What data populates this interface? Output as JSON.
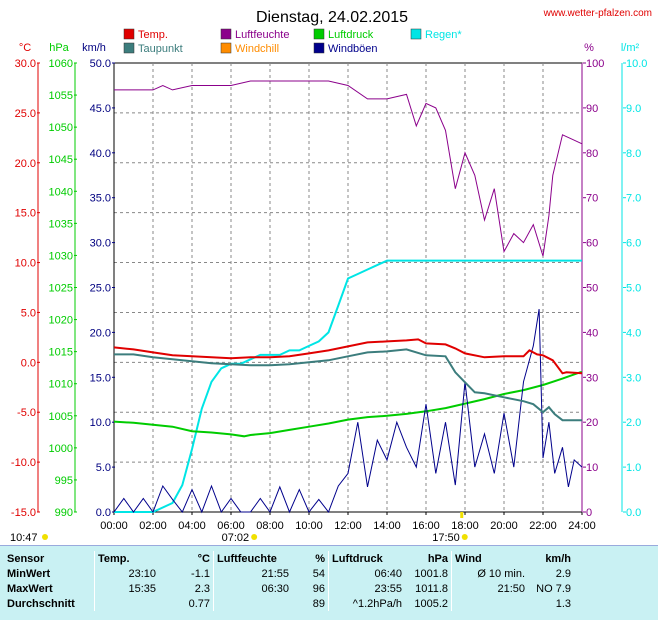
{
  "title": "Dienstag, 24.02.2015",
  "source": "www.wetter-pfalzen.com",
  "legend": [
    {
      "label": "Temp.",
      "color": "#e00000"
    },
    {
      "label": "Taupunkt",
      "color": "#3c7d7d"
    },
    {
      "label": "Luftfeuchte",
      "color": "#8b008b"
    },
    {
      "label": "Windchill",
      "color": "#ff8c00"
    },
    {
      "label": "Luftdruck",
      "color": "#00cc00"
    },
    {
      "label": "Windböen",
      "color": "#00008b"
    },
    {
      "label": "Regen*",
      "color": "#00e5e5"
    }
  ],
  "axis_units": {
    "temp": "°C",
    "pressure": "hPa",
    "wind": "km/h",
    "humidity": "%",
    "rain": "l/m²"
  },
  "markers": {
    "sunrise": "07:02",
    "sunset": "17:50",
    "left_time": "10:47"
  },
  "chart_data": {
    "type": "line",
    "title": "Dienstag, 24.02.2015",
    "x_ticks": [
      "00:00",
      "02:00",
      "04:00",
      "06:00",
      "08:00",
      "10:00",
      "12:00",
      "14:00",
      "16:00",
      "18:00",
      "20:00",
      "22:00",
      "24:00"
    ],
    "xlim": [
      0,
      24
    ],
    "axes": {
      "temp": {
        "unit": "°C",
        "ylim": [
          -15,
          30
        ],
        "ticks": [
          "30.0",
          "25.0",
          "20.0",
          "15.0",
          "10.0",
          "5.0",
          "0.0",
          "-5.0",
          "-10.0",
          "-15.0"
        ]
      },
      "pressure": {
        "unit": "hPa",
        "ylim": [
          990,
          1060
        ],
        "ticks": [
          "1060",
          "1055",
          "1050",
          "1045",
          "1040",
          "1035",
          "1030",
          "1025",
          "1020",
          "1015",
          "1010",
          "1005",
          "1000",
          "995",
          "990"
        ]
      },
      "wind": {
        "unit": "km/h",
        "ylim": [
          0,
          50
        ],
        "ticks": [
          "50.0",
          "45.0",
          "40.0",
          "35.0",
          "30.0",
          "25.0",
          "20.0",
          "15.0",
          "10.0",
          "5.0",
          "0.0"
        ]
      },
      "humidity": {
        "unit": "%",
        "ylim": [
          0,
          100
        ],
        "ticks": [
          "100",
          "90",
          "80",
          "70",
          "60",
          "50",
          "40",
          "30",
          "20",
          "10",
          "0"
        ]
      },
      "rain": {
        "unit": "l/m²",
        "ylim": [
          0,
          10
        ],
        "ticks": [
          "10.0",
          "9.0",
          "8.0",
          "7.0",
          "6.0",
          "5.0",
          "4.0",
          "3.0",
          "2.0",
          "1.0",
          "0.0"
        ]
      }
    },
    "series": [
      {
        "name": "Temp.",
        "axis": "temp",
        "color": "#e00000",
        "x": [
          0,
          1,
          2,
          3,
          4,
          5,
          6,
          7,
          8,
          9,
          10,
          11,
          12,
          13,
          14,
          15,
          15.6,
          16,
          17,
          17.5,
          18,
          19,
          20,
          21,
          21.3,
          21.7,
          22,
          22.5,
          23,
          23.2,
          24
        ],
        "y": [
          1.5,
          1.3,
          1.0,
          0.7,
          0.6,
          0.5,
          0.4,
          0.5,
          0.5,
          0.6,
          0.9,
          1.2,
          1.6,
          2.0,
          2.1,
          2.2,
          2.3,
          1.9,
          1.8,
          1.4,
          0.9,
          0.5,
          0.6,
          0.6,
          1.2,
          0.8,
          0.7,
          0.2,
          -1.1,
          -1.0,
          -1.1
        ]
      },
      {
        "name": "Taupunkt",
        "axis": "temp",
        "color": "#3c7d7d",
        "x": [
          0,
          1,
          2,
          3,
          4,
          5,
          6,
          7,
          8,
          9,
          10,
          11,
          12,
          13,
          14,
          15,
          16,
          17,
          17.5,
          18,
          18.5,
          19,
          20,
          21,
          21.5,
          22,
          22.3,
          22.6,
          23,
          24
        ],
        "y": [
          0.8,
          0.8,
          0.5,
          0.3,
          0.1,
          -0.1,
          -0.2,
          -0.3,
          -0.3,
          -0.2,
          0.0,
          0.2,
          0.6,
          1.0,
          1.1,
          1.3,
          0.7,
          0.6,
          -1.0,
          -2.0,
          -3.0,
          -3.1,
          -3.5,
          -3.9,
          -4.2,
          -5.0,
          -4.5,
          -5.2,
          -5.8,
          -5.8
        ]
      },
      {
        "name": "Luftfeuchte",
        "axis": "humidity",
        "color": "#8b008b",
        "x": [
          0,
          1,
          2,
          2.5,
          3,
          4,
          5,
          6,
          7,
          8,
          9,
          10,
          11,
          12,
          13,
          14,
          15,
          15.5,
          16,
          16.5,
          17,
          17.5,
          18,
          18.5,
          19,
          19.5,
          20,
          20.5,
          21,
          21.5,
          22,
          22.3,
          22.5,
          23,
          23.5,
          24
        ],
        "y": [
          94,
          94,
          94,
          95,
          94,
          95,
          95,
          95,
          96,
          96,
          96,
          96,
          96,
          95,
          92,
          92,
          93,
          86,
          91,
          90,
          85,
          72,
          80,
          75,
          65,
          72,
          58,
          62,
          60,
          64,
          57,
          66,
          75,
          84,
          83,
          82
        ]
      },
      {
        "name": "Luftdruck",
        "axis": "pressure",
        "color": "#00cc00",
        "x": [
          0,
          1,
          2,
          3,
          4,
          5,
          6,
          6.67,
          7,
          8,
          9,
          10,
          11,
          12,
          13,
          14,
          15,
          16,
          17,
          18,
          19,
          20,
          21,
          22,
          23,
          23.92,
          24
        ],
        "y": [
          1004.1,
          1003.9,
          1003.6,
          1003.3,
          1002.6,
          1002.4,
          1002.1,
          1001.8,
          1002.0,
          1002.3,
          1002.8,
          1003.3,
          1003.8,
          1004.4,
          1004.8,
          1005.0,
          1005.3,
          1005.7,
          1006.2,
          1006.9,
          1007.6,
          1008.4,
          1009.0,
          1009.8,
          1010.8,
          1011.8,
          1011.8
        ]
      },
      {
        "name": "Windböen",
        "axis": "wind",
        "color": "#00008b",
        "x": [
          0,
          0.5,
          1,
          1.5,
          2,
          2.5,
          3,
          3.5,
          4,
          4.5,
          5,
          5.5,
          6,
          6.5,
          7,
          7.5,
          8,
          8.5,
          9,
          9.5,
          10,
          10.5,
          11,
          11.5,
          12,
          12.5,
          13,
          13.5,
          14,
          14.5,
          15,
          15.5,
          16,
          16.5,
          17,
          17.5,
          18,
          18.5,
          19,
          19.5,
          20,
          20.5,
          21,
          21.5,
          21.8,
          22,
          22.3,
          22.6,
          23,
          23.3,
          23.6,
          24
        ],
        "y": [
          0,
          1.5,
          0,
          1.5,
          0,
          2.9,
          1.4,
          0,
          2.5,
          0,
          2.9,
          0,
          1.5,
          0,
          0,
          1.5,
          0,
          2.8,
          0,
          2.5,
          0,
          1.4,
          0,
          2.9,
          4.3,
          10,
          2.8,
          8,
          5.8,
          10,
          7.2,
          5,
          12,
          4.3,
          10,
          3,
          14.5,
          5,
          8.7,
          4.3,
          11,
          5,
          14.5,
          18.5,
          22.6,
          6,
          10,
          4.3,
          7.2,
          2.8,
          5.8,
          5
        ]
      },
      {
        "name": "Regen*",
        "axis": "rain",
        "color": "#00e5e5",
        "x": [
          0,
          2,
          3,
          3.5,
          4,
          4.5,
          5,
          5.5,
          6,
          6.5,
          7,
          7.5,
          8,
          8.5,
          9,
          9.5,
          10,
          10.5,
          11,
          11.5,
          12,
          12.5,
          13,
          14,
          16,
          18,
          20,
          22,
          24
        ],
        "y": [
          0,
          0,
          0.2,
          0.6,
          1.4,
          2.3,
          2.9,
          3.2,
          3.3,
          3.3,
          3.4,
          3.5,
          3.5,
          3.5,
          3.6,
          3.6,
          3.7,
          3.8,
          4.0,
          4.6,
          5.2,
          5.3,
          5.4,
          5.6,
          5.6,
          5.6,
          5.6,
          5.6,
          5.6
        ]
      }
    ]
  },
  "stats": {
    "headers": {
      "sensor": "Sensor",
      "temp": "Temp.",
      "temp_unit": "°C",
      "hum": "Luftfeuchte",
      "hum_unit": "%",
      "press": "Luftdruck",
      "press_unit": "hPa",
      "wind": "Wind",
      "wind_unit": "km/h"
    },
    "rows": [
      {
        "label": "MinWert",
        "temp_time": "23:10",
        "temp_val": "-1.1",
        "hum_time": "21:55",
        "hum_val": "54",
        "press_time": "06:40",
        "press_val": "1001.8",
        "wind_time": "Ø 10 min.",
        "wind_val": "2.9"
      },
      {
        "label": "MaxWert",
        "temp_time": "15:35",
        "temp_val": "2.3",
        "hum_time": "06:30",
        "hum_val": "96",
        "press_time": "23:55",
        "press_val": "1011.8",
        "wind_time": "21:50",
        "wind_val": "NO 7.9"
      },
      {
        "label": "Durchschnitt",
        "temp_time": "",
        "temp_val": "0.77",
        "hum_time": "",
        "hum_val": "89",
        "press_time": "^1.2hPa/h",
        "press_val": "1005.2",
        "wind_time": "",
        "wind_val": "1.3"
      }
    ]
  }
}
